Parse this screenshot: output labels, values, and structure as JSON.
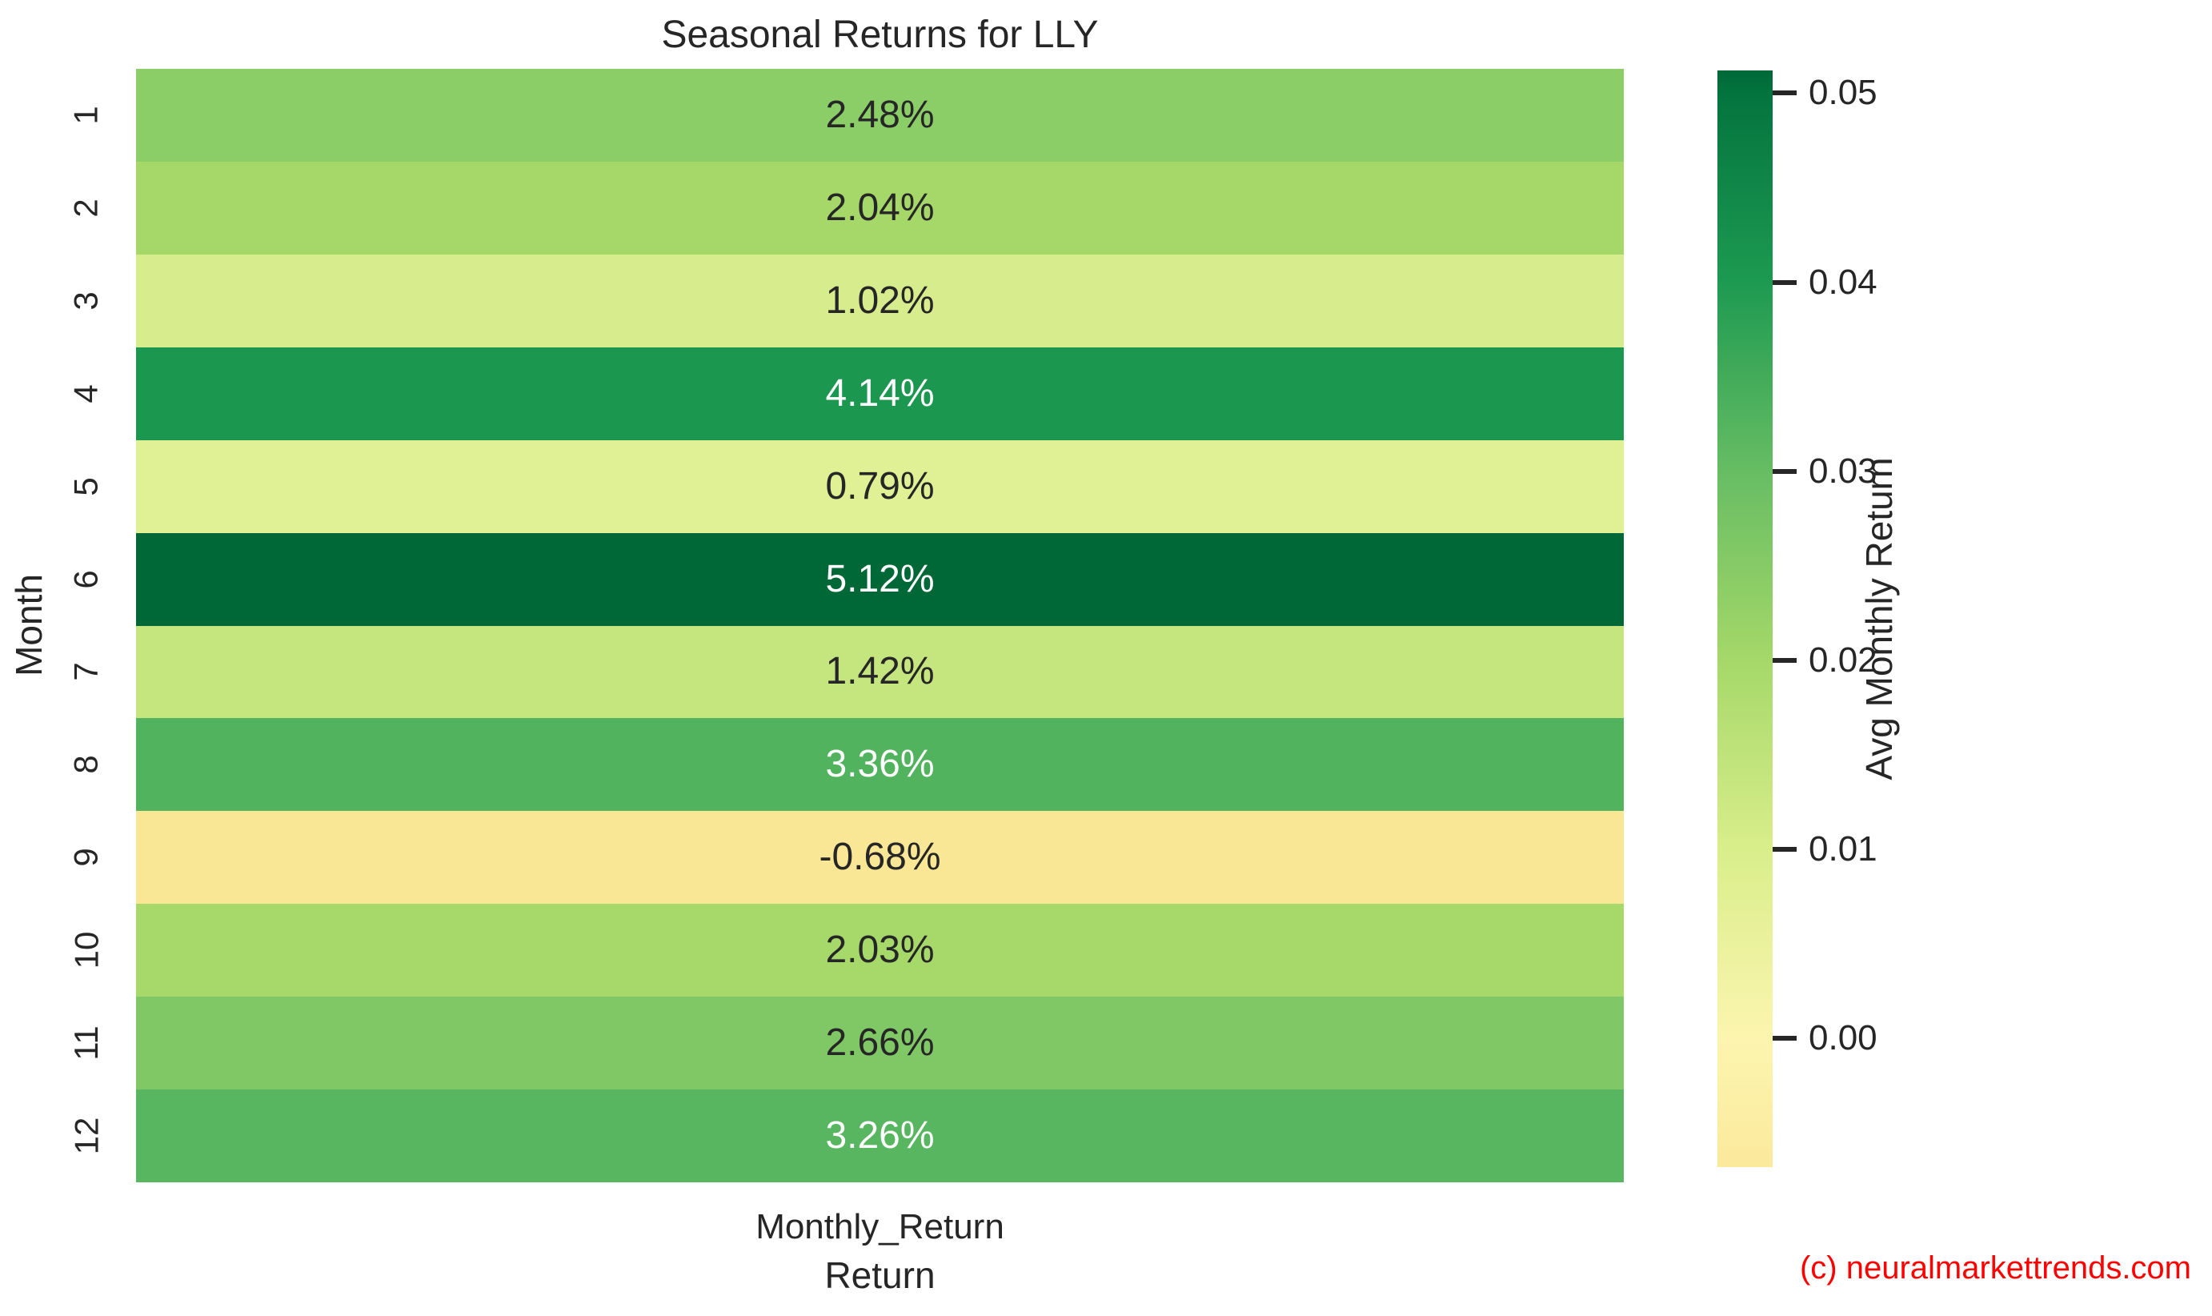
{
  "title": "Seasonal Returns for LLY",
  "watermark": {
    "text": "(c) neuralmarkettrends.com",
    "color": "#ff0000"
  },
  "colors": {
    "background": "#ffffff",
    "text": "#262626",
    "tick_mark": "#262626"
  },
  "chart_data": {
    "type": "heatmap",
    "title": "Seasonal Returns for LLY",
    "xlabel": "Return",
    "ylabel": "Month",
    "x_tick_labels": [
      "Monthly_Return"
    ],
    "y_tick_labels": [
      "1",
      "2",
      "3",
      "4",
      "5",
      "6",
      "7",
      "8",
      "9",
      "10",
      "11",
      "12"
    ],
    "values_percent": [
      2.48,
      2.04,
      1.02,
      4.14,
      0.79,
      5.12,
      1.42,
      3.36,
      -0.68,
      2.03,
      2.66,
      3.26
    ],
    "cells": [
      {
        "month": "1",
        "label": "2.48%",
        "value": 0.0248,
        "bg": "#8BCD67",
        "fg": "#262626"
      },
      {
        "month": "2",
        "label": "2.04%",
        "value": 0.0204,
        "bg": "#A5D869",
        "fg": "#262626"
      },
      {
        "month": "3",
        "label": "1.02%",
        "value": 0.0102,
        "bg": "#D7EC8C",
        "fg": "#262626"
      },
      {
        "month": "4",
        "label": "4.14%",
        "value": 0.0414,
        "bg": "#1B9750",
        "fg": "#ffffff"
      },
      {
        "month": "5",
        "label": "0.79%",
        "value": 0.0079,
        "bg": "#E0F195",
        "fg": "#262626"
      },
      {
        "month": "6",
        "label": "5.12%",
        "value": 0.0512,
        "bg": "#006837",
        "fg": "#ffffff"
      },
      {
        "month": "7",
        "label": "1.42%",
        "value": 0.0142,
        "bg": "#C5E67E",
        "fg": "#262626"
      },
      {
        "month": "8",
        "label": "3.36%",
        "value": 0.0336,
        "bg": "#51B35E",
        "fg": "#ffffff"
      },
      {
        "month": "9",
        "label": "-0.68%",
        "value": -0.0068,
        "bg": "#FAE795",
        "fg": "#262626"
      },
      {
        "month": "10",
        "label": "2.03%",
        "value": 0.0203,
        "bg": "#A6D96A",
        "fg": "#262626"
      },
      {
        "month": "11",
        "label": "2.66%",
        "value": 0.0266,
        "bg": "#80C866",
        "fg": "#262626"
      },
      {
        "month": "12",
        "label": "3.26%",
        "value": 0.0326,
        "bg": "#58B660",
        "fg": "#ffffff"
      }
    ],
    "colorbar": {
      "label": "Avg Monthly Return",
      "vmin": -0.0068,
      "vmax": 0.0512,
      "tick_labels": [
        "0.05",
        "0.04",
        "0.03",
        "0.02",
        "0.01",
        "0.00"
      ],
      "tick_values": [
        0.05,
        0.04,
        0.03,
        0.02,
        0.01,
        0.0
      ],
      "gradient": [
        {
          "pos": 0,
          "color": "#006837"
        },
        {
          "pos": 2.1,
          "color": "#03743E"
        },
        {
          "pos": 19.3,
          "color": "#1D9A51"
        },
        {
          "pos": 36.6,
          "color": "#67BD63"
        },
        {
          "pos": 53.8,
          "color": "#A5D869"
        },
        {
          "pos": 71.0,
          "color": "#D9EE8B"
        },
        {
          "pos": 88.3,
          "color": "#FCF5AF"
        },
        {
          "pos": 100,
          "color": "#FBE99C"
        }
      ],
      "grid": false,
      "legend_position": "right"
    }
  }
}
